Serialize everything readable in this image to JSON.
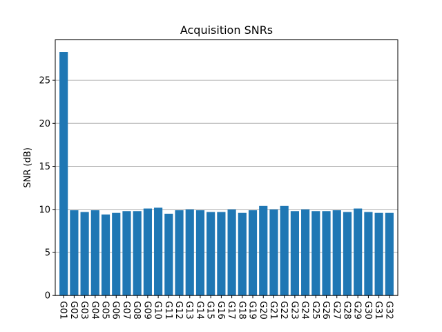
{
  "chart_data": {
    "type": "bar",
    "title": "Acquisition SNRs",
    "xlabel": "",
    "ylabel": "SNR (dB)",
    "categories": [
      "G01",
      "G02",
      "G03",
      "G04",
      "G05",
      "G06",
      "G07",
      "G08",
      "G09",
      "G10",
      "G11",
      "G12",
      "G13",
      "G14",
      "G15",
      "G16",
      "G17",
      "G18",
      "G19",
      "G20",
      "G21",
      "G22",
      "G23",
      "G24",
      "G25",
      "G26",
      "G27",
      "G28",
      "G29",
      "G30",
      "G31",
      "G32"
    ],
    "values": [
      28.3,
      9.9,
      9.7,
      9.9,
      9.4,
      9.6,
      9.8,
      9.8,
      10.1,
      10.2,
      9.5,
      9.9,
      10.0,
      9.9,
      9.7,
      9.7,
      10.0,
      9.6,
      9.9,
      10.4,
      10.0,
      10.4,
      9.8,
      10.0,
      9.8,
      9.8,
      9.9,
      9.7,
      10.1,
      9.7,
      9.6,
      9.6
    ],
    "yticks": [
      0,
      5,
      10,
      15,
      20,
      25
    ],
    "ylim": [
      0,
      29.7
    ],
    "grid": "y",
    "bar_color": "#1f77b4",
    "grid_color": "#b0b0b0",
    "axis_color": "#000000"
  }
}
